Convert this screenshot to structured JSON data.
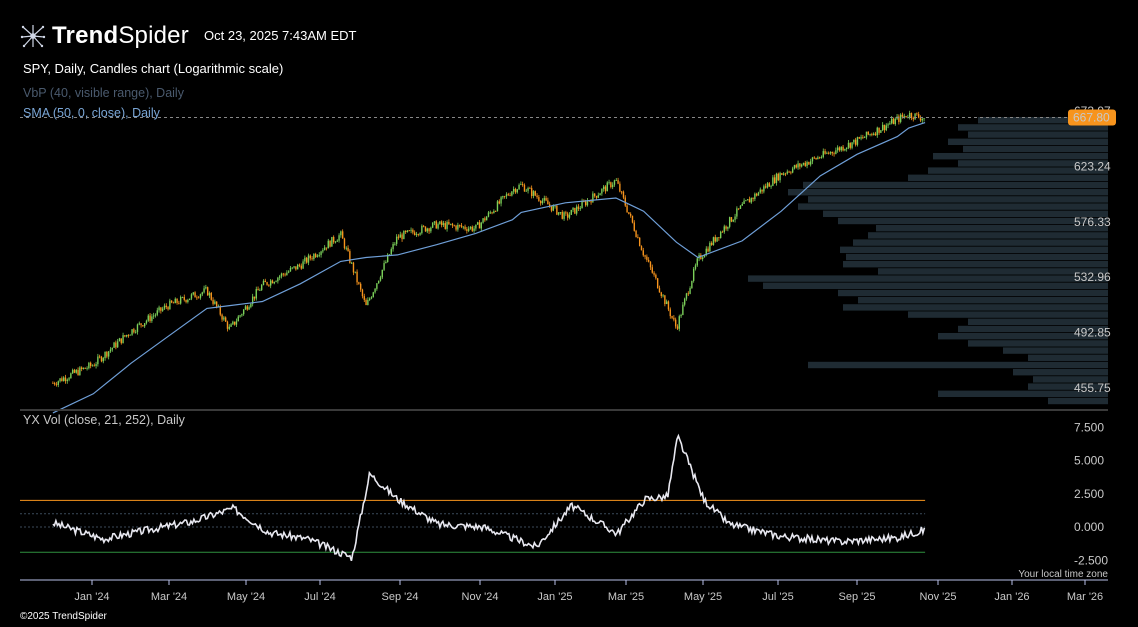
{
  "header": {
    "brand_bold": "Trend",
    "brand_light": "Spider",
    "datetime": "Oct 23, 2025 7:43AM EDT",
    "chart_title": "SPY, Daily, Candles chart (Logarithmic scale)"
  },
  "indicators": {
    "vbp": "VbP (40, visible range), Daily",
    "sma": "SMA (50, 0, close), Daily",
    "yxvol": "YX Vol (close, 21, 252), Daily"
  },
  "footer": {
    "local_tz": "Your local time zone",
    "copyright": "©2025 TrendSpider"
  },
  "colors": {
    "up_candle": "#7bd05a",
    "down_candle": "#f7941d",
    "sma_line": "#6f9fd8",
    "vbp_bar": "#1f2b33",
    "vol_line": "#e8e8f0",
    "upper_band": "#f7941d",
    "lower_band": "#2f8f3f",
    "last_price_tag": "#f7941d"
  },
  "chart_data": [
    {
      "type": "line",
      "name": "price",
      "scale": "log",
      "yticks": [
        "673.97",
        "623.24",
        "576.33",
        "532.96",
        "492.85",
        "455.75"
      ],
      "last_price": "667.80",
      "x": [
        "2023-12-01",
        "2024-01-02",
        "2024-02-01",
        "2024-03-01",
        "2024-04-01",
        "2024-04-19",
        "2024-05-15",
        "2024-06-14",
        "2024-07-16",
        "2024-08-05",
        "2024-08-30",
        "2024-09-30",
        "2024-10-31",
        "2024-11-29",
        "2024-12-06",
        "2025-01-10",
        "2025-02-19",
        "2025-03-13",
        "2025-04-08",
        "2025-04-25",
        "2025-05-30",
        "2025-06-30",
        "2025-07-31",
        "2025-08-29",
        "2025-09-30",
        "2025-10-09",
        "2025-10-22"
      ],
      "close": [
        459,
        471,
        494,
        512,
        523,
        495,
        527,
        542,
        566,
        511,
        564,
        574,
        571,
        603,
        607,
        580,
        611,
        551,
        496,
        546,
        589,
        617,
        632,
        646,
        666,
        671,
        667
      ],
      "sma50": [
        440,
        452,
        472,
        490,
        510,
        512,
        515,
        528,
        545,
        548,
        550,
        558,
        567,
        578,
        584,
        592,
        596,
        585,
        560,
        548,
        561,
        585,
        615,
        634,
        650,
        658,
        663
      ]
    },
    {
      "type": "line",
      "name": "YX Vol",
      "yticks": [
        "7.500",
        "5.000",
        "2.500",
        "0.000",
        "-2.500"
      ],
      "x": [
        "2023-12-01",
        "2024-01-10",
        "2024-02-15",
        "2024-03-20",
        "2024-04-22",
        "2024-05-20",
        "2024-06-20",
        "2024-07-25",
        "2024-08-08",
        "2024-08-30",
        "2024-10-01",
        "2024-11-06",
        "2024-12-18",
        "2025-01-15",
        "2025-02-20",
        "2025-03-14",
        "2025-04-01",
        "2025-04-09",
        "2025-04-30",
        "2025-05-20",
        "2025-06-30",
        "2025-08-15",
        "2025-09-30",
        "2025-10-22"
      ],
      "values": [
        0.3,
        -0.9,
        -0.2,
        0.4,
        1.4,
        -0.4,
        -0.9,
        -2.3,
        4.0,
        2.1,
        0.2,
        0.0,
        -1.5,
        1.6,
        -0.5,
        2.1,
        2.3,
        6.8,
        2.0,
        0.2,
        -0.7,
        -1.1,
        -0.8,
        -0.2
      ],
      "upper_band": 2.0,
      "mid_upper": 1.0,
      "zero": 0.0,
      "lower_band": -1.9
    }
  ],
  "xticks": [
    "Jan '24",
    "Mar '24",
    "May '24",
    "Jul '24",
    "Sep '24",
    "Nov '24",
    "Jan '25",
    "Mar '25",
    "May '25",
    "Jul '25",
    "Sep '25",
    "Nov '25",
    "Jan '26",
    "Mar '26"
  ]
}
